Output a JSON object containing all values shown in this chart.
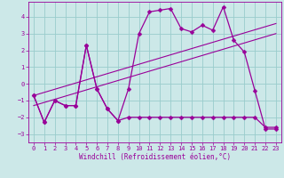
{
  "background_color": "#cce8e8",
  "grid_color": "#99cccc",
  "line_color": "#990099",
  "xlabel": "Windchill (Refroidissement éolien,°C)",
  "ylim": [
    -3.5,
    4.9
  ],
  "xlim": [
    -0.5,
    23.5
  ],
  "yticks": [
    -3,
    -2,
    -1,
    0,
    1,
    2,
    3,
    4
  ],
  "xticks": [
    0,
    1,
    2,
    3,
    4,
    5,
    6,
    7,
    8,
    9,
    10,
    11,
    12,
    13,
    14,
    15,
    16,
    17,
    18,
    19,
    20,
    21,
    22,
    23
  ],
  "curve1_x": [
    0,
    1,
    2,
    3,
    4,
    5,
    6,
    7,
    8,
    9,
    10,
    11,
    12,
    13,
    14,
    15,
    16,
    17,
    18,
    19,
    20,
    21,
    22,
    23
  ],
  "curve1_y": [
    -0.7,
    -2.3,
    -1.0,
    -1.3,
    -1.3,
    2.3,
    -0.3,
    -1.5,
    -2.2,
    -0.3,
    3.0,
    4.3,
    4.4,
    4.5,
    3.3,
    3.1,
    3.5,
    3.2,
    4.6,
    2.6,
    1.9,
    -0.4,
    -2.7,
    -2.7
  ],
  "curve2_x": [
    0,
    1,
    2,
    3,
    4,
    5,
    6,
    7,
    8,
    9,
    10,
    11,
    12,
    13,
    14,
    15,
    16,
    17,
    18,
    19,
    20,
    21,
    22,
    23
  ],
  "curve2_y": [
    -0.7,
    -2.3,
    -1.0,
    -1.3,
    -1.3,
    2.3,
    -0.3,
    -1.5,
    -2.2,
    -2.0,
    -2.0,
    -2.0,
    -2.0,
    -2.0,
    -2.0,
    -2.0,
    -2.0,
    -2.0,
    -2.0,
    -2.0,
    -2.0,
    -2.0,
    -2.6,
    -2.6
  ],
  "trend1_x": [
    0,
    23
  ],
  "trend1_y": [
    -0.7,
    3.6
  ],
  "trend2_x": [
    0,
    23
  ],
  "trend2_y": [
    -1.3,
    3.0
  ]
}
